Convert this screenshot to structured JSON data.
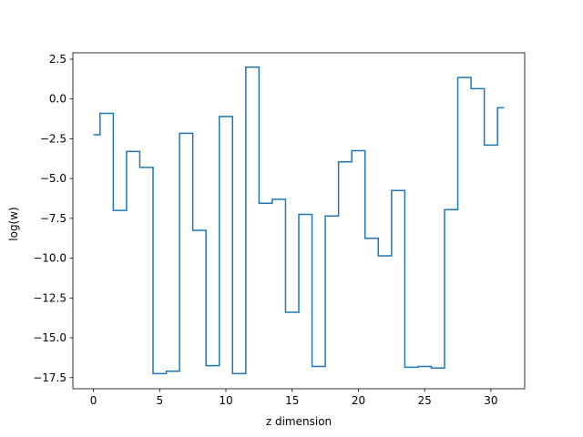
{
  "chart_data": {
    "type": "line",
    "drawstyle": "steps-mid",
    "title": "",
    "xlabel": "z dimension",
    "ylabel": "log(w)",
    "xlim": [
      -1.55,
      32.55
    ],
    "ylim": [
      -18.2,
      2.9
    ],
    "xticks": [
      0,
      5,
      10,
      15,
      20,
      25,
      30
    ],
    "xtick_labels": [
      "0",
      "5",
      "10",
      "15",
      "20",
      "25",
      "30"
    ],
    "yticks": [
      2.5,
      0.0,
      -2.5,
      -5.0,
      -7.5,
      -10.0,
      -12.5,
      -15.0,
      -17.5
    ],
    "ytick_labels": [
      "2.5",
      "0.0",
      "−2.5",
      "−5.0",
      "−7.5",
      "−10.0",
      "−12.5",
      "−15.0",
      "−17.5"
    ],
    "grid": false,
    "series": [
      {
        "color": "#1f77b4",
        "x": [
          0,
          1,
          2,
          3,
          4,
          5,
          6,
          7,
          8,
          9,
          10,
          11,
          12,
          13,
          14,
          15,
          16,
          17,
          18,
          19,
          20,
          21,
          22,
          23,
          24,
          25,
          26,
          27,
          28,
          29,
          30,
          31
        ],
        "values": [
          -2.25,
          -0.9,
          -7.0,
          -3.3,
          -4.3,
          -17.25,
          -17.1,
          -2.15,
          -8.25,
          -16.75,
          -1.1,
          -17.25,
          2.0,
          -6.55,
          -6.3,
          -13.4,
          -7.25,
          -16.8,
          -7.35,
          -3.95,
          -3.25,
          -8.75,
          -9.85,
          -5.75,
          -16.85,
          -16.8,
          -16.9,
          -6.95,
          1.35,
          0.65,
          -2.9,
          -0.55
        ]
      }
    ]
  }
}
